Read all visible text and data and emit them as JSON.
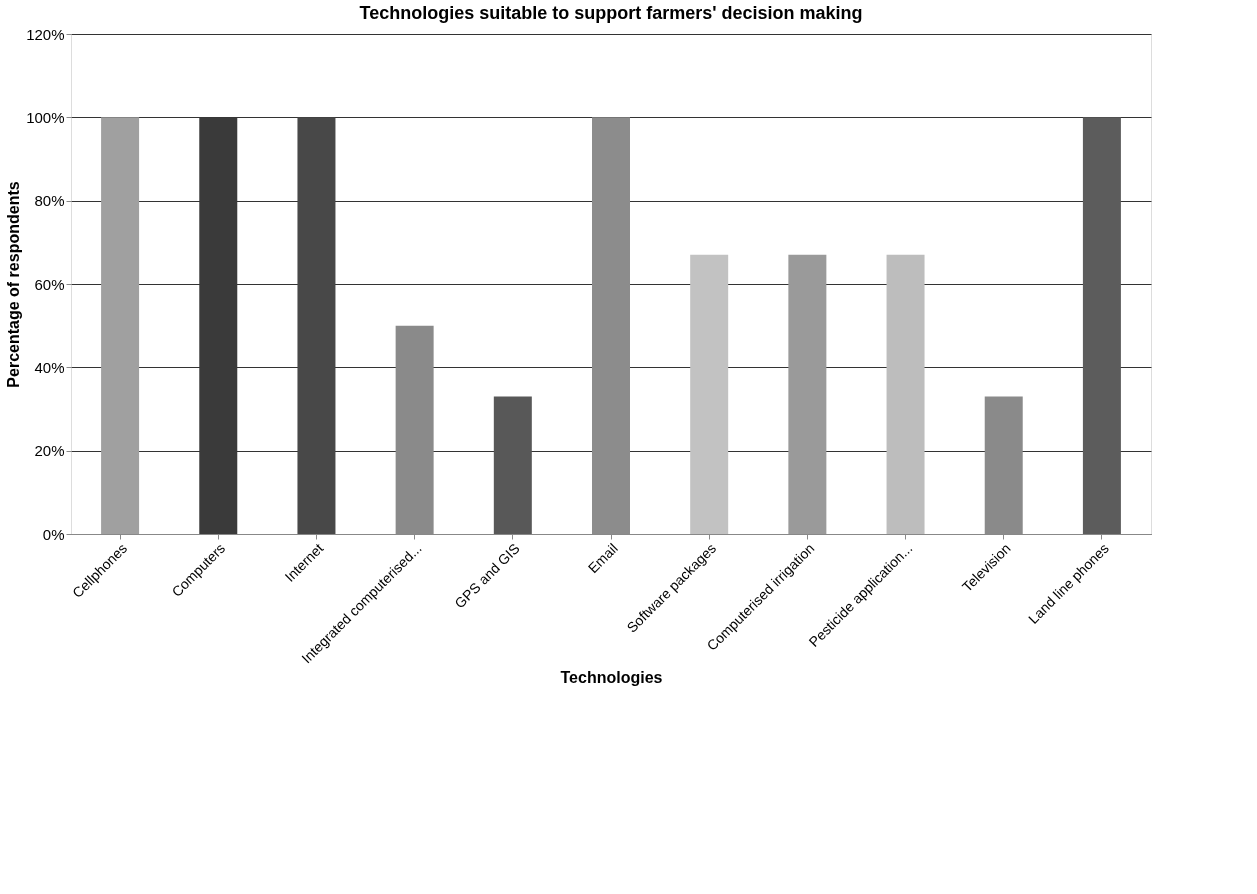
{
  "chart_data": {
    "type": "bar",
    "title": "Technologies suitable to support farmers' decision making",
    "xlabel": "Technologies",
    "ylabel": "Percentage of respondents",
    "categories": [
      "Cellphones",
      "Computers",
      "Internet",
      "Integrated computerised...",
      "GPS and GIS",
      "Email",
      "Software packages",
      "Computerised irrigation",
      "Pesticide application...",
      "Television",
      "Land line phones"
    ],
    "values": [
      100,
      100,
      100,
      50,
      33,
      100,
      67,
      67,
      67,
      33,
      100
    ],
    "colors": [
      "#a0a0a0",
      "#3a3a3a",
      "#484848",
      "#8a8a8a",
      "#585858",
      "#8c8c8c",
      "#c2c2c2",
      "#9a9a9a",
      "#bdbdbd",
      "#8a8a8a",
      "#5c5c5c"
    ],
    "ylim": [
      0,
      120
    ],
    "yticks": [
      {
        "value": 0,
        "label": "0%"
      },
      {
        "value": 20,
        "label": "20%"
      },
      {
        "value": 40,
        "label": "40%"
      },
      {
        "value": 60,
        "label": "60%"
      },
      {
        "value": 80,
        "label": "80%"
      },
      {
        "value": 100,
        "label": "100%"
      },
      {
        "value": 120,
        "label": "120%"
      }
    ],
    "grid": "y"
  }
}
